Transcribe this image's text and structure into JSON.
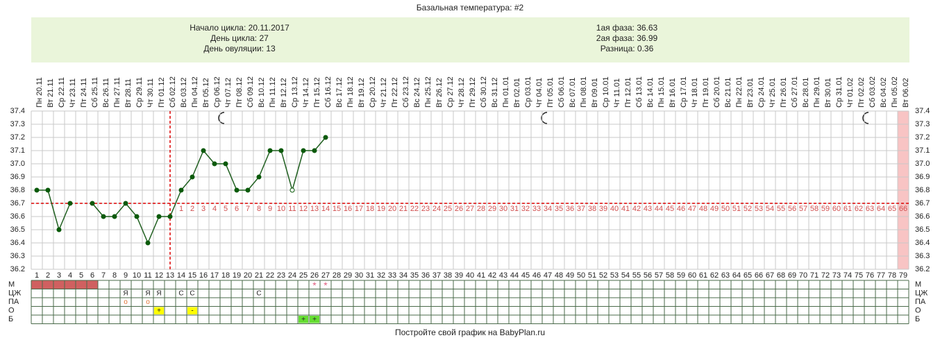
{
  "title": "Базальная температура: #2",
  "info": {
    "left": [
      "Начало цикла: 20.11.2017",
      "День цикла: 27",
      "День овуляции: 13"
    ],
    "right": [
      "1ая фаза: 36.63",
      "2ая фаза: 36.99",
      "Разница: 0.36"
    ]
  },
  "chart_data": {
    "type": "line",
    "color": "#1f5f1f",
    "grid": true,
    "dates": [
      "Пн 20.11",
      "Вт 21.11",
      "Ср 22.11",
      "Чт 23.11",
      "Пт 24.11",
      "Сб 25.11",
      "Вс 26.11",
      "Пн 27.11",
      "Вт 28.11",
      "Ср 29.11",
      "Чт 30.11",
      "Пт 01.12",
      "Сб 02.12",
      "Вс 03.12",
      "Пн 04.12",
      "Вт 05.12",
      "Ср 06.12",
      "Чт 07.12",
      "Пт 08.12",
      "Сб 09.12",
      "Вс 10.12",
      "Пн 11.12",
      "Вт 12.12",
      "Ср 13.12",
      "Чт 14.12",
      "Пт 15.12",
      "Сб 16.12",
      "Вс 17.12",
      "Пн 18.12",
      "Вт 19.12",
      "Ср 20.12",
      "Чт 21.12",
      "Пт 22.12",
      "Сб 23.12",
      "Вс 24.12",
      "Пн 25.12",
      "Вт 26.12",
      "Ср 27.12",
      "Чт 28.12",
      "Пт 29.12",
      "Сб 30.12",
      "Вс 31.12",
      "Пн 01.01",
      "Вт 02.01",
      "Ср 03.01",
      "Чт 04.01",
      "Пт 05.01",
      "Сб 06.01",
      "Вс 07.01",
      "Пн 08.01",
      "Вт 09.01",
      "Ср 10.01",
      "Чт 11.01",
      "Пт 12.01",
      "Сб 13.01",
      "Вс 14.01",
      "Пн 15.01",
      "Вт 16.01",
      "Ср 17.01",
      "Чт 18.01",
      "Пт 19.01",
      "Сб 20.01",
      "Вс 21.01",
      "Пн 22.01",
      "Вт 23.01",
      "Ср 24.01",
      "Чт 25.01",
      "Пт 26.01",
      "Сб 27.01",
      "Вс 28.01",
      "Пн 29.01",
      "Вт 30.01",
      "Ср 31.01",
      "Чт 01.02",
      "Пт 02.02",
      "Сб 03.02",
      "Вс 04.02",
      "Пн 05.02",
      "Вт 06.02"
    ],
    "days": [
      1,
      2,
      3,
      4,
      5,
      6,
      7,
      8,
      9,
      10,
      11,
      12,
      13,
      14,
      15,
      16,
      17,
      18,
      19,
      20,
      21,
      22,
      23,
      24,
      25,
      26,
      27,
      28,
      29,
      30,
      31,
      32,
      33,
      34,
      35,
      36,
      37,
      38,
      39,
      40,
      41,
      42,
      43,
      44,
      45,
      46,
      47,
      48,
      49,
      50,
      51,
      52,
      53,
      54,
      55,
      56,
      57,
      58,
      59,
      60,
      61,
      62,
      63,
      64,
      65,
      66,
      67,
      68,
      69,
      70,
      71,
      72,
      73,
      74,
      75,
      76,
      77,
      78,
      79
    ],
    "values": [
      36.8,
      36.8,
      36.5,
      36.7,
      null,
      36.7,
      36.6,
      36.6,
      36.7,
      36.6,
      36.4,
      36.6,
      36.6,
      36.8,
      36.9,
      37.1,
      37,
      37,
      36.8,
      36.8,
      36.9,
      37.1,
      37.1,
      36.8,
      37.1,
      37.1,
      37.2,
      null,
      null,
      null,
      null,
      null,
      null,
      null,
      null,
      null,
      null,
      null,
      null,
      null,
      null,
      null,
      null,
      null,
      null,
      null,
      null,
      null,
      null,
      null,
      null,
      null,
      null,
      null,
      null,
      null,
      null,
      null,
      null,
      null,
      null,
      null,
      null,
      null,
      null,
      null,
      null,
      null,
      null,
      null,
      null,
      null,
      null,
      null,
      null,
      null,
      null,
      null,
      null
    ],
    "hollow_days": [
      24
    ],
    "ylim": [
      36.2,
      37.4
    ],
    "yticks": [
      36.2,
      36.3,
      36.4,
      36.5,
      36.6,
      36.7,
      36.8,
      36.9,
      {
        "value": 37,
        "label": "37.0"
      },
      37.1,
      37.2,
      37.3,
      37.4
    ],
    "coverline": 36.7,
    "ovulation_day": 13,
    "post_ovulation_days": [
      1,
      2,
      3,
      4,
      5,
      6,
      7,
      8,
      9,
      10,
      11,
      12,
      13,
      14,
      15,
      16,
      17,
      18,
      19,
      20,
      21,
      22,
      23,
      24,
      25,
      26,
      27,
      28,
      29,
      30,
      31,
      32,
      33,
      34,
      35,
      36,
      37,
      38,
      39,
      40,
      41,
      42,
      43,
      44,
      45,
      46,
      47,
      48,
      49,
      50,
      51,
      52,
      53,
      54,
      55,
      56,
      57,
      58,
      59,
      60,
      61,
      62,
      63,
      64,
      65,
      66
    ],
    "highlight_day": 79
  },
  "table": {
    "rows": [
      {
        "label": "М",
        "fill_days": [
          1,
          2,
          3,
          4,
          5,
          6
        ],
        "color": "#d06060",
        "entries": [
          {
            "day": 26,
            "text": "*"
          },
          {
            "day": 27,
            "text": "*"
          }
        ]
      },
      {
        "label": "ЦЖ",
        "entries": [
          {
            "day": 9,
            "text": "Я"
          },
          {
            "day": 11,
            "text": "Я"
          },
          {
            "day": 12,
            "text": "Я"
          },
          {
            "day": 14,
            "text": "С"
          },
          {
            "day": 15,
            "text": "С"
          },
          {
            "day": 21,
            "text": "С"
          }
        ]
      },
      {
        "label": "ПА",
        "entries": [
          {
            "day": 9,
            "text": "о"
          },
          {
            "day": 11,
            "text": "о"
          }
        ]
      },
      {
        "label": "О",
        "color": "#ffff00",
        "entries": [
          {
            "day": 12,
            "text": "+"
          },
          {
            "day": 15,
            "text": "-"
          }
        ]
      },
      {
        "label": "Б",
        "color": "#66dd33",
        "entries": [
          {
            "day": 25,
            "text": "+"
          },
          {
            "day": 26,
            "text": "+"
          }
        ]
      }
    ]
  },
  "footer": "Постройте свой график на BabyPlan.ru"
}
